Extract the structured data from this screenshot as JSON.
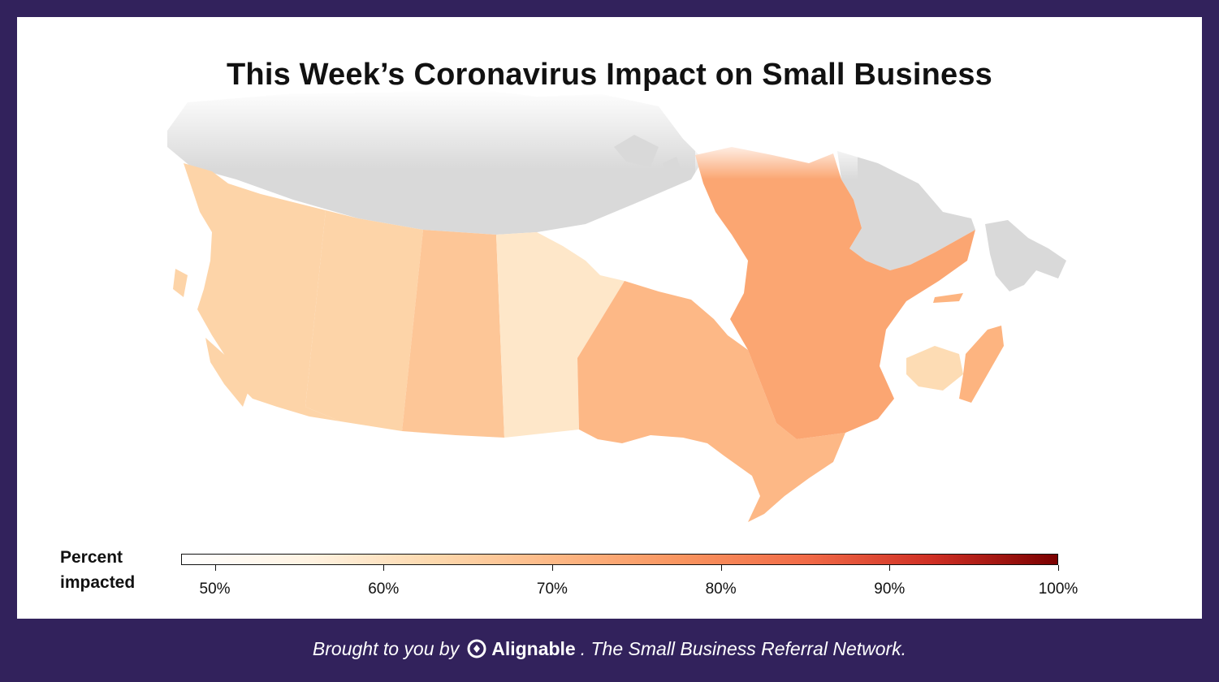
{
  "title": "This Week’s Coronavirus Impact on Small Business",
  "legend": {
    "label_line1": "Percent",
    "label_line2": "impacted",
    "ticks": [
      "50%",
      "60%",
      "70%",
      "80%",
      "90%",
      "100%"
    ],
    "range": [
      48,
      100
    ]
  },
  "colors": {
    "background": "#32225c",
    "no_data": "#d9d9d9",
    "scale": [
      "#ffffff",
      "#fff3e2",
      "#fdd9ae",
      "#fdb784",
      "#f9945f",
      "#f16a47",
      "#cf2f24",
      "#7a0000"
    ]
  },
  "regions": [
    {
      "name": "British Columbia",
      "value": 64
    },
    {
      "name": "Alberta",
      "value": 64
    },
    {
      "name": "Saskatchewan",
      "value": 67
    },
    {
      "name": "Manitoba",
      "value": 59
    },
    {
      "name": "Ontario",
      "value": 70
    },
    {
      "name": "Quebec",
      "value": 74
    },
    {
      "name": "New Brunswick",
      "value": 62
    },
    {
      "name": "Nova Scotia",
      "value": 71
    },
    {
      "name": "Prince Edward Island",
      "value": 71
    }
  ],
  "footer": {
    "prefix": "Brought to you by",
    "brand": "Alignable",
    "suffix": ". The Small Business Referral Network."
  }
}
